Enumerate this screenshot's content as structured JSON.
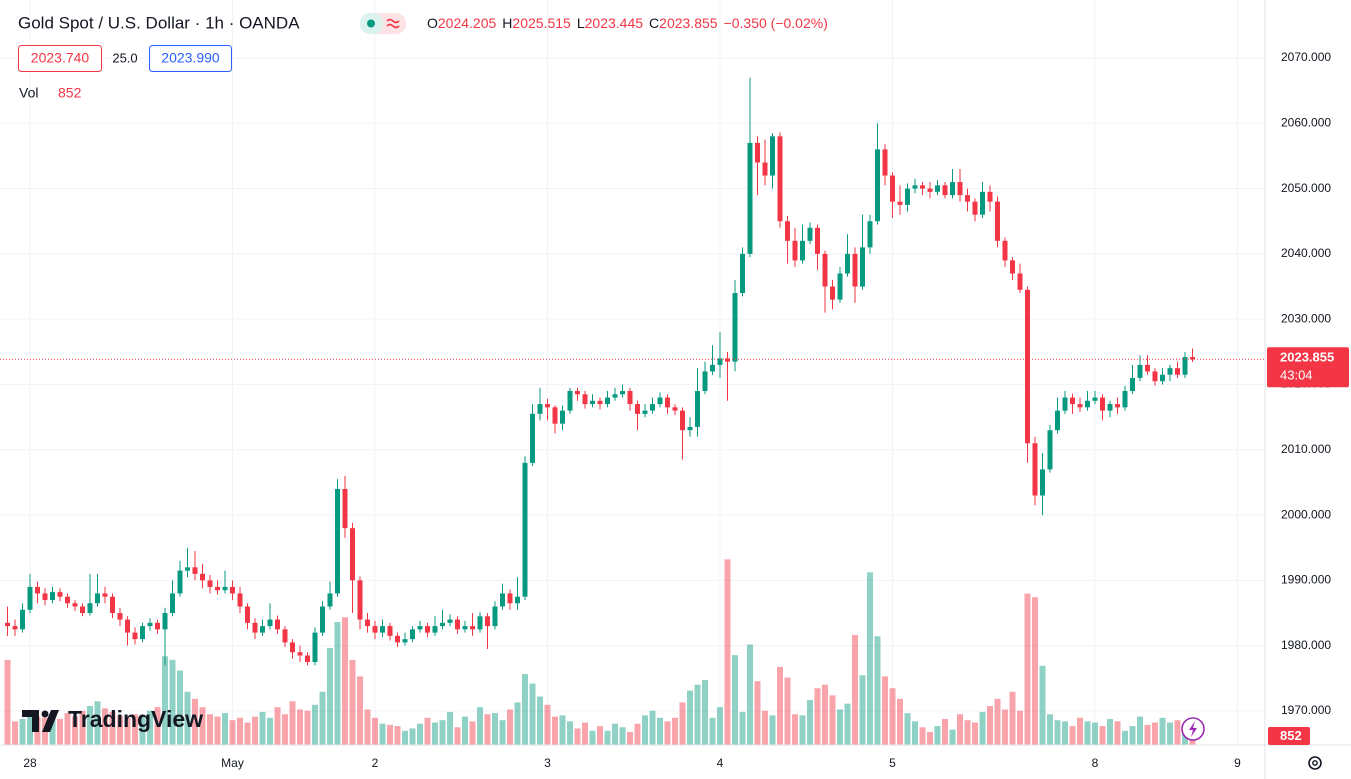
{
  "chart_data": {
    "type": "candlestick",
    "title": "Gold Spot / U.S. Dollar · 1h · OANDA",
    "categories": [
      null,
      null,
      null,
      "28",
      null,
      null,
      null,
      null,
      null,
      null,
      null,
      null,
      null,
      null,
      null,
      null,
      null,
      null,
      null,
      null,
      null,
      null,
      null,
      null,
      null,
      null,
      null,
      null,
      null,
      null,
      "May",
      null,
      null,
      null,
      null,
      null,
      null,
      null,
      null,
      null,
      null,
      null,
      null,
      null,
      null,
      null,
      null,
      null,
      null,
      "2",
      null,
      null,
      null,
      null,
      null,
      null,
      null,
      null,
      null,
      null,
      null,
      null,
      null,
      null,
      null,
      null,
      null,
      null,
      null,
      null,
      null,
      null,
      "3",
      null,
      null,
      null,
      null,
      null,
      null,
      null,
      null,
      null,
      null,
      null,
      null,
      null,
      null,
      null,
      null,
      null,
      null,
      null,
      null,
      null,
      null,
      "4",
      null,
      null,
      null,
      null,
      null,
      null,
      null,
      null,
      null,
      null,
      null,
      null,
      null,
      null,
      null,
      null,
      null,
      null,
      null,
      null,
      null,
      null,
      "5",
      null,
      null,
      null,
      null,
      null,
      null,
      null,
      null,
      null,
      null,
      null,
      null,
      null,
      null,
      null,
      null,
      null,
      null,
      null,
      null,
      null,
      null,
      null,
      null,
      null,
      null,
      "8",
      null,
      null,
      null,
      null,
      null,
      null,
      null,
      null,
      null,
      null,
      null,
      null,
      null,
      null,
      null,
      null,
      null,
      null,
      "9"
    ],
    "open": [
      1983.5,
      1983.0,
      1982.5,
      1985.5,
      1989.0,
      1988.0,
      1987.0,
      1988.2,
      1987.5,
      1986.5,
      1986.0,
      1985.0,
      1986.5,
      1988.0,
      1987.5,
      1985.0,
      1984.0,
      1982.0,
      1981.0,
      1983.0,
      1983.5,
      1982.5,
      1985.0,
      1988.0,
      1991.5,
      1992.0,
      1991.0,
      1990.0,
      1989.0,
      1988.5,
      1989.0,
      1988.0,
      1986.0,
      1983.5,
      1982.0,
      1983.0,
      1984.0,
      1982.5,
      1980.5,
      1979.0,
      1978.5,
      1977.5,
      1982.0,
      1986.0,
      1988.0,
      2004.0,
      1998.0,
      1990.0,
      1984.0,
      1983.0,
      1982.0,
      1983.0,
      1981.5,
      1980.5,
      1981.0,
      1982.5,
      1983.0,
      1982.0,
      1983.0,
      1983.5,
      1984.0,
      1982.5,
      1983.0,
      1982.5,
      1984.5,
      1983.0,
      1986.0,
      1988.0,
      1986.5,
      1987.5,
      2008.0,
      2015.5,
      2017.0,
      2016.5,
      2014.0,
      2016.0,
      2019.0,
      2018.5,
      2017.0,
      2017.5,
      2017.0,
      2018.0,
      2018.5,
      2019.0,
      2017.0,
      2015.5,
      2016.0,
      2017.0,
      2018.0,
      2016.5,
      2016.0,
      2013.0,
      2013.5,
      2019.0,
      2022.0,
      2023.0,
      2024.0,
      2023.5,
      2034.0,
      2040.0,
      2057.0,
      2054.0,
      2052.0,
      2058.0,
      2045.0,
      2042.0,
      2039.0,
      2042.0,
      2044.0,
      2040.0,
      2035.0,
      2033.0,
      2037.0,
      2040.0,
      2035.0,
      2041.0,
      2045.0,
      2056.0,
      2052.0,
      2048.0,
      2047.5,
      2050.0,
      2050.5,
      2050.0,
      2049.5,
      2050.5,
      2049.0,
      2051.0,
      2049.0,
      2048.0,
      2046.0,
      2049.5,
      2048.0,
      2042.0,
      2039.0,
      2037.0,
      2034.5,
      2011.0,
      2003.0,
      2007.0,
      2013.0,
      2016.0,
      2018.0,
      2017.0,
      2016.5,
      2017.5,
      2018.0,
      2016.0,
      2017.0,
      2016.5,
      2019.0,
      2021.0,
      2023.0,
      2022.0,
      2020.5,
      2021.5,
      2022.5,
      2021.5,
      2024.205,
      null,
      null,
      null,
      null,
      null,
      null
    ],
    "high": [
      1986,
      1984,
      1986.5,
      1991,
      1989.8,
      1988.8,
      1989,
      1988.8,
      1988,
      1987,
      1986.5,
      1991,
      1991,
      1989,
      1988,
      1985.8,
      1984.5,
      1982.8,
      1983.5,
      1984.2,
      1984,
      1985.8,
      1990,
      1993,
      1995,
      1994.5,
      1992.5,
      1990.8,
      1990,
      1991.5,
      1990,
      1989,
      1986.5,
      1984.2,
      1984,
      1986.5,
      1984.6,
      1983,
      1981,
      1980,
      1979,
      1982.8,
      1986.8,
      1989.8,
      2005.5,
      2006,
      1998.8,
      1990.6,
      1985,
      1983.8,
      1984,
      1983.5,
      1982,
      1982,
      1983,
      1983.8,
      1983.5,
      1984.5,
      1985.5,
      1984.8,
      1984.5,
      1983.8,
      1985,
      1985.2,
      1985,
      1986.8,
      1989.5,
      1988.6,
      1990.5,
      2009,
      2017,
      2019.5,
      2017.8,
      2016.8,
      2016.8,
      2019.5,
      2019.5,
      2019,
      2018.5,
      2018,
      2019,
      2019.5,
      2020,
      2019.5,
      2017.5,
      2017,
      2018,
      2018.8,
      2018.5,
      2017,
      2016.5,
      2015,
      2022.5,
      2023.5,
      2026,
      2028,
      2025,
      2036,
      2041,
      2067,
      2058,
      2057.5,
      2058.5,
      2058.6,
      2045.8,
      2044,
      2044.5,
      2044.8,
      2044.5,
      2040.5,
      2036,
      2038,
      2043,
      2041,
      2046,
      2046,
      2060,
      2056.8,
      2052.5,
      2050.5,
      2050.8,
      2051.5,
      2051,
      2051,
      2051.3,
      2051,
      2053,
      2053,
      2050,
      2048.5,
      2051,
      2050.5,
      2048.8,
      2042.5,
      2039.5,
      2038.5,
      2035,
      2012,
      2009.5,
      2013.8,
      2018,
      2019,
      2018.6,
      2018,
      2019,
      2019,
      2018.5,
      2017.5,
      2018,
      2019.8,
      2023,
      2024.5,
      2024.5,
      2022.5,
      2022.5,
      2023,
      2023.5,
      2025,
      2025.515,
      null,
      null,
      null,
      null,
      null,
      null
    ],
    "low": [
      1981.5,
      1981.5,
      1982,
      1985,
      1986.5,
      1986.2,
      1986.5,
      1986.8,
      1985.8,
      1985.3,
      1984.5,
      1984.6,
      1986,
      1986.5,
      1984.2,
      1983,
      1980,
      1980.2,
      1980.5,
      1982.3,
      1981.8,
      1977,
      1984.5,
      1987.5,
      1990.5,
      1990,
      1988.8,
      1988,
      1987.8,
      1988,
      1987,
      1985,
      1982.5,
      1981,
      1981.5,
      1982.5,
      1981.8,
      1979.8,
      1978,
      1977.5,
      1977,
      1977,
      1981.5,
      1985.5,
      1987.5,
      1996.5,
      1985,
      1982.5,
      1982,
      1981,
      1981.3,
      1980.8,
      1979.8,
      1980,
      1980.5,
      1982,
      1981.3,
      1981.5,
      1982.5,
      1983,
      1981.8,
      1982,
      1981.5,
      1982,
      1979.5,
      1982.5,
      1985.5,
      1985.5,
      1985.5,
      1987,
      2007.5,
      2014.5,
      2014.5,
      2012.5,
      2013,
      2015.5,
      2017.5,
      2016.3,
      2016.5,
      2016.2,
      2016.5,
      2017.5,
      2018,
      2016,
      2013,
      2015,
      2015.5,
      2016.5,
      2015.5,
      2015.3,
      2008.5,
      2012,
      2012,
      2018.5,
      2021.5,
      2021,
      2017.5,
      2022,
      2033.5,
      2039.5,
      2049,
      2050.5,
      2050,
      2044,
      2038.5,
      2038,
      2038.5,
      2041.5,
      2037.5,
      2031,
      2031.5,
      2032.5,
      2036.5,
      2032.5,
      2034.5,
      2040,
      2044.5,
      2050.5,
      2045.5,
      2046,
      2046.5,
      2049.3,
      2049,
      2048.5,
      2049,
      2048.5,
      2048.5,
      2048,
      2046.5,
      2045,
      2045.5,
      2046.5,
      2041,
      2038,
      2036,
      2034,
      2008,
      2001.5,
      2000,
      2006.5,
      2012.5,
      2015.5,
      2015.5,
      2015.8,
      2016,
      2017,
      2014.5,
      2015,
      2015.5,
      2016,
      2018.5,
      2020.5,
      2021.5,
      2019.8,
      2020,
      2020.5,
      2021,
      2021,
      2023.445,
      null,
      null,
      null,
      null,
      null,
      null
    ],
    "close": [
      1983.0,
      1982.5,
      1985.5,
      1989.0,
      1988.0,
      1987.0,
      1988.2,
      1987.5,
      1986.5,
      1986.0,
      1985.0,
      1986.5,
      1988.0,
      1987.5,
      1985.0,
      1984.0,
      1982.0,
      1981.0,
      1983.0,
      1983.5,
      1982.5,
      1985.0,
      1988.0,
      1991.5,
      1992.0,
      1991.0,
      1990.0,
      1989.0,
      1988.5,
      1989.0,
      1988.0,
      1986.0,
      1983.5,
      1982.0,
      1983.0,
      1984.0,
      1982.5,
      1980.5,
      1979.0,
      1978.5,
      1977.5,
      1982.0,
      1986.0,
      1988.0,
      2004.0,
      1998.0,
      1990.0,
      1984.0,
      1983.0,
      1982.0,
      1983.0,
      1981.5,
      1980.5,
      1981.0,
      1982.5,
      1983.0,
      1982.0,
      1983.0,
      1983.5,
      1984.0,
      1982.5,
      1983.0,
      1982.5,
      1984.5,
      1983.0,
      1986.0,
      1988.0,
      1986.5,
      1987.5,
      2008.0,
      2015.5,
      2017.0,
      2016.5,
      2014.0,
      2016.0,
      2019.0,
      2018.5,
      2017.0,
      2017.5,
      2017.0,
      2018.0,
      2018.5,
      2019.0,
      2017.0,
      2015.5,
      2016.0,
      2017.0,
      2018.0,
      2016.5,
      2016.0,
      2013.0,
      2013.5,
      2019.0,
      2022.0,
      2023.0,
      2024.0,
      2023.5,
      2034.0,
      2040.0,
      2057.0,
      2054.0,
      2052.0,
      2058.0,
      2045.0,
      2042.0,
      2039.0,
      2042.0,
      2044.0,
      2040.0,
      2035.0,
      2033.0,
      2037.0,
      2040.0,
      2035.0,
      2041.0,
      2045.0,
      2056.0,
      2052.0,
      2048.0,
      2047.5,
      2050.0,
      2050.5,
      2050.0,
      2049.5,
      2050.5,
      2049.0,
      2051.0,
      2049.0,
      2048.0,
      2046.0,
      2049.5,
      2048.0,
      2042.0,
      2039.0,
      2037.0,
      2034.5,
      2011.0,
      2003.0,
      2007.0,
      2013.0,
      2016.0,
      2018.0,
      2017.0,
      2016.5,
      2017.5,
      2018.0,
      2016.0,
      2017.0,
      2016.5,
      2019.0,
      2021.0,
      2023.0,
      2022.0,
      2020.5,
      2021.5,
      2022.5,
      2021.5,
      2024.205,
      2023.855,
      null,
      null,
      null,
      null,
      null,
      null
    ],
    "volume": [
      7200,
      2000,
      2200,
      2600,
      2400,
      2300,
      2500,
      2200,
      2700,
      2400,
      2900,
      3300,
      3700,
      3100,
      2800,
      2500,
      2300,
      2600,
      2400,
      2900,
      3200,
      7500,
      7200,
      6300,
      4500,
      3900,
      3200,
      2600,
      2400,
      2700,
      2100,
      2300,
      1900,
      2400,
      2800,
      2300,
      3200,
      2600,
      3700,
      3000,
      2900,
      3400,
      4500,
      8200,
      10400,
      10800,
      7200,
      5800,
      3000,
      2300,
      1800,
      1700,
      1600,
      1200,
      1400,
      1800,
      2300,
      1900,
      2100,
      2800,
      1500,
      2400,
      2000,
      3200,
      2600,
      2700,
      2100,
      3000,
      3600,
      6000,
      5200,
      4100,
      3400,
      2400,
      2500,
      2000,
      1400,
      1900,
      1200,
      1600,
      1200,
      1800,
      1500,
      1100,
      1800,
      2500,
      2900,
      2300,
      2000,
      2300,
      3600,
      4600,
      5100,
      5500,
      2300,
      3200,
      15700,
      7600,
      2800,
      8500,
      5400,
      2900,
      2500,
      6600,
      5700,
      2600,
      2500,
      3800,
      4800,
      5100,
      4200,
      3000,
      3500,
      9300,
      5900,
      14600,
      9200,
      5800,
      4800,
      3900,
      2700,
      2000,
      1500,
      1100,
      1600,
      2200,
      1300,
      2600,
      2100,
      1900,
      2800,
      3300,
      3900,
      3000,
      4500,
      2900,
      12800,
      12500,
      6700,
      2600,
      2100,
      2000,
      1600,
      2300,
      2000,
      1900,
      1600,
      2200,
      2000,
      1200,
      1600,
      2400,
      1700,
      1900,
      2300,
      1900,
      2100,
      1700,
      852,
      null,
      null,
      null,
      null,
      null,
      null
    ],
    "up_color": "#089981",
    "down_color": "#f23645",
    "ylim": [
      1964.79,
      2078.88
    ],
    "yticks": [
      {
        "value": 1970,
        "label": "1970.000"
      },
      {
        "value": 1980,
        "label": "1980.000"
      },
      {
        "value": 1990,
        "label": "1990.000"
      },
      {
        "value": 2000,
        "label": "2000.000"
      },
      {
        "value": 2010,
        "label": "2010.000"
      },
      {
        "value": 2020,
        "label": "2020.000"
      },
      {
        "value": 2030,
        "label": "2030.000"
      },
      {
        "value": 2040,
        "label": "2040.000"
      },
      {
        "value": 2050,
        "label": "2050.000"
      },
      {
        "value": 2060,
        "label": "2060.000"
      },
      {
        "value": 2070,
        "label": "2070.000"
      }
    ],
    "y2lim": [
      0,
      63000
    ],
    "grid": true
  },
  "header": {
    "o_label": "O",
    "h_label": "H",
    "l_label": "L",
    "c_label": "C",
    "change": "−0.350 (−0.02%)",
    "bid": "2023.740",
    "spread": "25.0",
    "ask": "2023.990",
    "vol_label": "Vol"
  },
  "countdown": "43:04",
  "brand": "TradingView"
}
